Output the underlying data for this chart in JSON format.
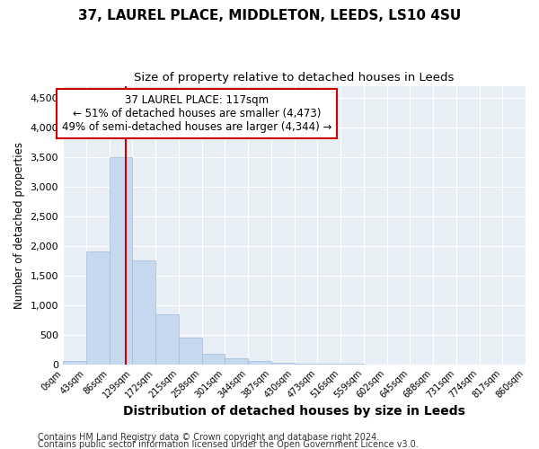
{
  "title": "37, LAUREL PLACE, MIDDLETON, LEEDS, LS10 4SU",
  "subtitle": "Size of property relative to detached houses in Leeds",
  "xlabel": "Distribution of detached houses by size in Leeds",
  "ylabel": "Number of detached properties",
  "bar_values": [
    50,
    1900,
    3500,
    1750,
    850,
    450,
    175,
    100,
    60,
    30,
    10,
    5,
    3,
    2,
    1,
    0,
    0,
    0,
    0,
    0
  ],
  "bin_labels": [
    "0sqm",
    "43sqm",
    "86sqm",
    "129sqm",
    "172sqm",
    "215sqm",
    "258sqm",
    "301sqm",
    "344sqm",
    "387sqm",
    "430sqm",
    "473sqm",
    "516sqm",
    "559sqm",
    "602sqm",
    "645sqm",
    "688sqm",
    "731sqm",
    "774sqm",
    "817sqm",
    "860sqm"
  ],
  "bar_color": "#c5d8ef",
  "bar_edge_color": "#a0bdd8",
  "vline_color": "#cc0000",
  "annotation_line1": "37 LAUREL PLACE: 117sqm",
  "annotation_line2": "← 51% of detached houses are smaller (4,473)",
  "annotation_line3": "49% of semi-detached houses are larger (4,344) →",
  "annotation_box_color": "#ffffff",
  "annotation_box_edge": "#cc0000",
  "ylim": [
    0,
    4700
  ],
  "yticks": [
    0,
    500,
    1000,
    1500,
    2000,
    2500,
    3000,
    3500,
    4000,
    4500
  ],
  "background_color": "#e8eef5",
  "grid_color": "#ffffff",
  "footer_line1": "Contains HM Land Registry data © Crown copyright and database right 2024.",
  "footer_line2": "Contains public sector information licensed under the Open Government Licence v3.0.",
  "fig_bg": "#ffffff",
  "title_fontsize": 11,
  "subtitle_fontsize": 9.5,
  "xlabel_fontsize": 10,
  "ylabel_fontsize": 8.5,
  "footer_fontsize": 7
}
